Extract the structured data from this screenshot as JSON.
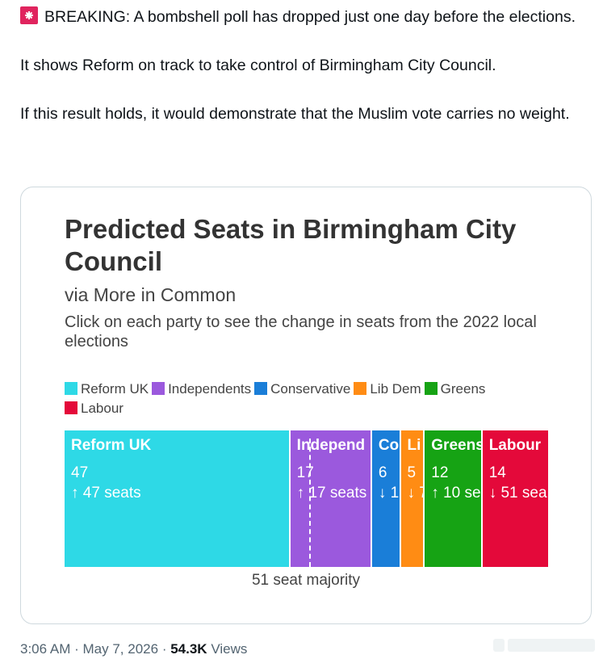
{
  "tweet": {
    "icon": "siren-emoji",
    "line1": "BREAKING: A bombshell poll has dropped just one day before the elections.",
    "line2": "It shows Reform on track to take control of Birmingham City Council.",
    "line3": "If this result holds, it would demonstrate that the Muslim vote carries no weight."
  },
  "card": {
    "title": "Predicted Seats in Birmingham City Council",
    "subtitle": "via More in Common",
    "description": "Click on each party to see the change in seats from the 2022 local elections",
    "majority_label": "51 seat majority"
  },
  "chart_data": {
    "type": "bar",
    "stacked": true,
    "orientation": "horizontal",
    "title": "Predicted Seats in Birmingham City Council",
    "subtitle": "via More in Common",
    "total": 101,
    "majority": 51,
    "legend_placement": "top",
    "series": [
      {
        "name": "Reform UK",
        "value": 47,
        "label": "Reform UK",
        "value_text": "47",
        "change_text": "↑ 47 seats",
        "color": "#2ed9e6"
      },
      {
        "name": "Independents",
        "value": 17,
        "label": "Independ",
        "value_text": "17",
        "change_text": "↑ 17 seats",
        "color": "#9b59dd"
      },
      {
        "name": "Conservative",
        "value": 6,
        "label": "Co",
        "value_text": "6",
        "change_text": "↓ 1",
        "color": "#1a7ed8"
      },
      {
        "name": "Lib Dem",
        "value": 5,
        "label": "Li",
        "value_text": "5",
        "change_text": "↓ 7",
        "color": "#ff8c14"
      },
      {
        "name": "Greens",
        "value": 12,
        "label": "Greens",
        "value_text": "12",
        "change_text": "↑ 10 se",
        "color": "#16a314"
      },
      {
        "name": "Labour",
        "value": 14,
        "label": "Labour",
        "value_text": "14",
        "change_text": "↓ 51 sea",
        "color": "#e4093a"
      }
    ]
  },
  "meta": {
    "time": "3:06 AM",
    "sep1": "·",
    "date": "May 7, 2026",
    "sep2": "·",
    "views_count": "54.3K",
    "views_label": "Views"
  }
}
